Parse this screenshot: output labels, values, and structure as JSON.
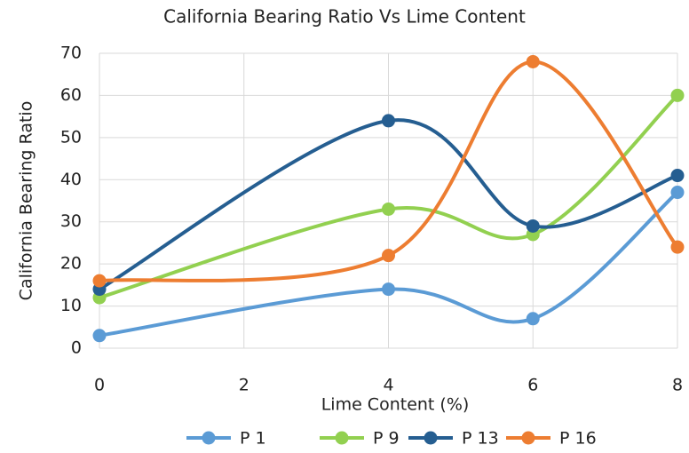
{
  "chart_data": {
    "type": "line",
    "title": "California Bearing Ratio Vs Lime Content",
    "x_label": "Lime Content (%)",
    "y_label": "California Bearing Ratio",
    "x": [
      0,
      4,
      6,
      8
    ],
    "series": [
      {
        "name": "P 1",
        "color": "#5b9bd5",
        "values": [
          3,
          14,
          7,
          37
        ]
      },
      {
        "name": "P 9",
        "color": "#92d050",
        "values": [
          12,
          33,
          27,
          60
        ]
      },
      {
        "name": "P 13",
        "color": "#255e91",
        "values": [
          14,
          54,
          29,
          41
        ]
      },
      {
        "name": "P 16",
        "color": "#ed7d31",
        "values": [
          16,
          22,
          68,
          24
        ]
      }
    ],
    "xlim": [
      0,
      8
    ],
    "xticks": [
      0,
      2,
      4,
      6,
      8
    ],
    "ylim": [
      0,
      70
    ],
    "yticks": [
      0,
      10,
      20,
      30,
      40,
      50,
      60,
      70
    ],
    "grid": true,
    "smooth": true,
    "legend": "bottom"
  }
}
